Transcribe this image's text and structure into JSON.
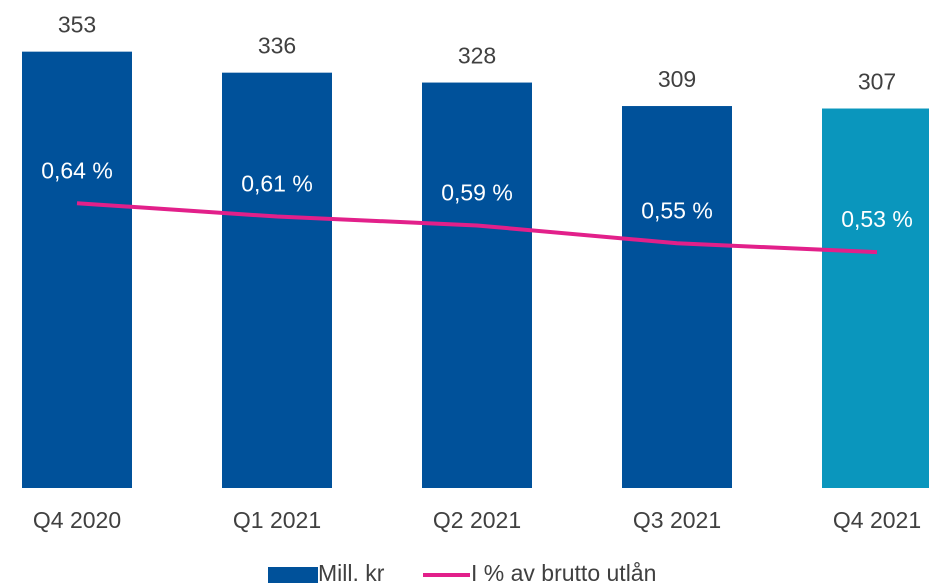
{
  "chart_data": {
    "type": "bar_line",
    "categories": [
      "Q4 2020",
      "Q1 2021",
      "Q2 2021",
      "Q3 2021",
      "Q4 2021"
    ],
    "series": [
      {
        "name": "Mill. kr",
        "type": "bar",
        "color": "#00519a",
        "colors": [
          "#00519a",
          "#00519a",
          "#00519a",
          "#00519a",
          "#0a96bd"
        ],
        "values": [
          353,
          336,
          328,
          309,
          307
        ]
      },
      {
        "name": "I % av brutto utlån",
        "type": "line",
        "axis": "y2",
        "color": "#e2208a",
        "values": [
          0.64,
          0.61,
          0.59,
          0.55,
          0.53
        ],
        "value_labels": [
          "0,64 %",
          "0,61 %",
          "0,59 %",
          "0,55 %",
          "0,53 %"
        ]
      }
    ],
    "ylim": [
      0,
      360
    ],
    "y2lim": [
      0,
      1
    ],
    "legend": "bottom"
  }
}
